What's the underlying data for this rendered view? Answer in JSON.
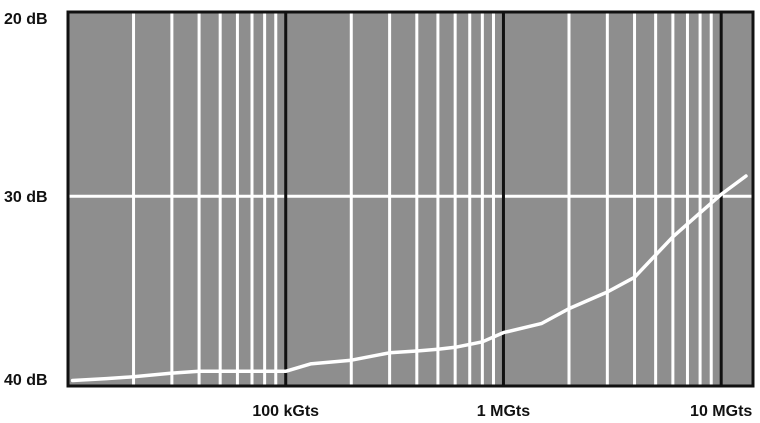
{
  "chart_data": {
    "type": "line",
    "title": "",
    "xlabel": "",
    "ylabel": "",
    "x_scale": "log",
    "xlim": [
      10000,
      14000000
    ],
    "ylim": [
      40.3,
      20
    ],
    "grid": true,
    "x_ticks": [
      {
        "value": 100000,
        "label": "100 kGts"
      },
      {
        "value": 1000000,
        "label": "1 MGts"
      },
      {
        "value": 10000000,
        "label": "10 MGts"
      }
    ],
    "y_ticks": [
      {
        "value": 20,
        "label": "20 dB"
      },
      {
        "value": 30,
        "label": "30 dB"
      },
      {
        "value": 40,
        "label": "40 dB"
      }
    ],
    "series": [
      {
        "x": [
          10500,
          15000,
          20000,
          30000,
          40000,
          60000,
          80000,
          100000,
          130000,
          200000,
          300000,
          400000,
          500000,
          600000,
          800000,
          1000000,
          1500000,
          2000000,
          3000000,
          4000000,
          6000000,
          8000000,
          10000000,
          13000000
        ],
        "y": [
          40.0,
          39.9,
          39.8,
          39.6,
          39.5,
          39.5,
          39.5,
          39.5,
          39.1,
          38.9,
          38.5,
          38.4,
          38.3,
          38.2,
          37.9,
          37.4,
          36.9,
          36.1,
          35.2,
          34.4,
          32.2,
          30.9,
          29.9,
          28.9
        ]
      }
    ],
    "colors": {
      "plot_background": "#8e8e8e",
      "minor_grid": "#ffffff",
      "major_grid": "#111111",
      "line": "#ffffff",
      "frame": "#111111"
    }
  }
}
